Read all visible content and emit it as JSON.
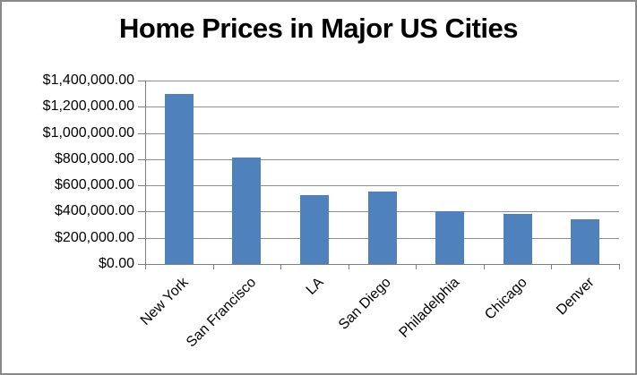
{
  "chart_data": {
    "type": "bar",
    "title": "Home Prices in Major US Cities",
    "categories": [
      "New York",
      "San Francisco",
      "LA",
      "San Diego",
      "Philadelphia",
      "Chicago",
      "Denver"
    ],
    "values": [
      1300000,
      810000,
      525000,
      555000,
      400000,
      385000,
      340000
    ],
    "xlabel": "",
    "ylabel": "",
    "ylim": [
      0,
      1400000
    ],
    "y_tick_step": 200000,
    "y_tick_labels_top_to_bottom": [
      "$1,400,000.00",
      "$1,200,000.00",
      "$1,000,000.00",
      "$800,000.00",
      "$600,000.00",
      "$400,000.00",
      "$200,000.00",
      "$0.00"
    ],
    "grid": true,
    "legend_position": "none",
    "x_label_rotation_deg": 45,
    "colors": {
      "bar": "#4F81BD",
      "gridline": "#8E8E8E",
      "axis": "#7F7F7F",
      "text": "#000000",
      "frame_border": "#8A8A8A",
      "background": "#FFFFFF"
    }
  }
}
